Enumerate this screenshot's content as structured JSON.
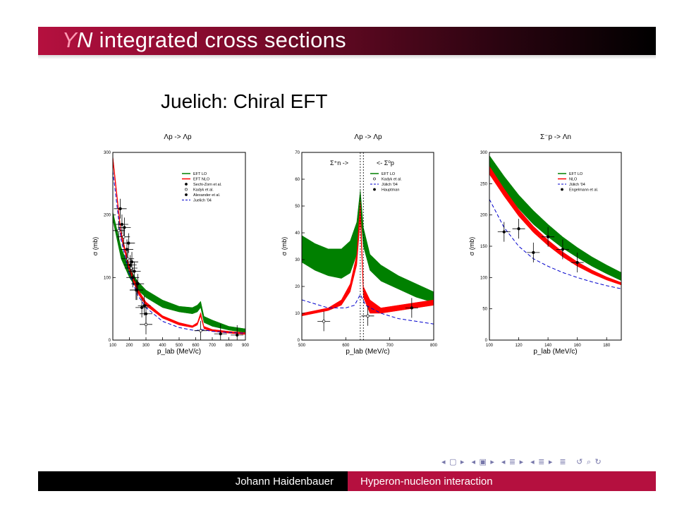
{
  "header": {
    "title_y": "Y",
    "title_n": "N",
    "title_rest": " integrated cross sections",
    "subtitle": "Juelich: Chiral EFT"
  },
  "footer": {
    "author": "Johann Haidenbauer",
    "talk": "Hyperon-nucleon interaction"
  },
  "nav_icons": [
    "nav-left-icon",
    "nav-frame-icon",
    "nav-subsection-icon",
    "nav-section-icon",
    "nav-align-icon",
    "nav-search-icon"
  ],
  "colors": {
    "lo": "#008000",
    "nlo": "#ff0000",
    "juelich": "#0000cc",
    "accent": "#b5103f"
  },
  "chart_data": [
    {
      "type": "line",
      "title": "Λp -> Λp",
      "xlabel": "p_lab (MeV/c)",
      "ylabel": "σ (mb)",
      "xlim": [
        100,
        900
      ],
      "ylim": [
        0,
        300
      ],
      "xticks": [
        100,
        200,
        300,
        400,
        500,
        600,
        700,
        800,
        900
      ],
      "yticks": [
        0,
        100,
        200,
        300
      ],
      "legend_position": "top-right",
      "legend": [
        "EFT LO",
        "EFT NLO",
        "Sechi-Zorn et al.",
        "Kadyk et al.",
        "Alexander et al.",
        "Juelich '04"
      ],
      "series": [
        {
          "name": "EFT LO",
          "style": "band",
          "x": [
            100,
            150,
            200,
            250,
            300,
            400,
            500,
            580,
            610,
            630,
            650,
            700,
            800,
            900
          ],
          "lo": [
            192,
            130,
            100,
            80,
            68,
            52,
            45,
            42,
            45,
            52,
            28,
            22,
            16,
            12
          ],
          "hi": [
            205,
            148,
            115,
            94,
            80,
            64,
            54,
            52,
            56,
            62,
            38,
            32,
            22,
            18
          ]
        },
        {
          "name": "EFT NLO",
          "style": "band",
          "x": [
            100,
            150,
            200,
            250,
            300,
            400,
            500,
            580,
            610,
            630,
            650,
            700,
            800,
            900
          ],
          "lo": [
            285,
            165,
            110,
            75,
            55,
            35,
            24,
            20,
            24,
            38,
            18,
            14,
            11,
            9
          ],
          "hi": [
            295,
            173,
            118,
            82,
            61,
            39,
            28,
            23,
            28,
            44,
            22,
            17,
            14,
            12
          ]
        },
        {
          "name": "Juelich '04",
          "style": "dashed",
          "x": [
            100,
            150,
            200,
            250,
            300,
            400,
            500,
            600,
            633,
            700,
            800,
            900
          ],
          "y": [
            270,
            160,
            105,
            72,
            52,
            30,
            20,
            15,
            17,
            14,
            12,
            11
          ]
        },
        {
          "name": "Sechi-Zorn et al.",
          "style": "points",
          "x": [
            145,
            170,
            195,
            215,
            230,
            250,
            290
          ],
          "y": [
            210,
            180,
            155,
            125,
            110,
            90,
            55
          ]
        },
        {
          "name": "Kadyk et al.",
          "style": "points",
          "x": [
            135,
            165,
            190,
            210,
            240,
            300,
            630
          ],
          "y": [
            175,
            165,
            130,
            115,
            80,
            25,
            15
          ]
        },
        {
          "name": "Alexander et al.",
          "style": "points",
          "x": [
            155,
            185,
            205,
            220,
            245,
            275,
            300,
            750,
            850
          ],
          "y": [
            185,
            145,
            120,
            100,
            80,
            52,
            42,
            10,
            8
          ]
        }
      ]
    },
    {
      "type": "line",
      "title": "Λp -> Λp",
      "annotation_left": "Σ⁺n ->",
      "annotation_right": "<- Σ⁰p",
      "xlabel": "p_lab (MeV/c)",
      "ylabel": "σ (mb)",
      "xlim": [
        500,
        800
      ],
      "ylim": [
        0,
        70
      ],
      "xticks": [
        500,
        600,
        700,
        800
      ],
      "yticks": [
        0,
        10,
        20,
        30,
        40,
        50,
        60,
        70
      ],
      "thresholds": [
        633,
        640
      ],
      "legend_position": "top-right",
      "legend": [
        "EFT LO",
        "Kadyk et al.",
        "Jülich '04",
        "Hauptman"
      ],
      "series": [
        {
          "name": "EFT LO",
          "style": "band",
          "x": [
            500,
            530,
            560,
            590,
            610,
            625,
            633,
            640,
            655,
            680,
            720,
            760,
            800
          ],
          "lo": [
            29,
            26,
            24,
            23,
            25,
            32,
            48,
            35,
            26,
            22,
            19,
            16,
            14
          ],
          "hi": [
            39,
            36,
            34,
            34,
            37,
            44,
            56,
            42,
            32,
            28,
            24,
            21,
            18
          ]
        },
        {
          "name": "EFT NLO",
          "style": "band",
          "x": [
            500,
            530,
            560,
            590,
            610,
            625,
            633,
            640,
            655,
            680,
            720,
            760,
            800
          ],
          "lo": [
            9,
            10,
            11,
            13,
            18,
            28,
            45,
            16,
            10,
            10,
            11,
            12,
            13
          ],
          "hi": [
            10,
            11,
            12,
            15,
            21,
            32,
            52,
            20,
            15,
            12,
            13,
            14,
            15
          ]
        },
        {
          "name": "Jülich '04",
          "style": "dashed",
          "x": [
            500,
            560,
            600,
            620,
            633,
            645,
            680,
            720,
            760,
            800
          ],
          "y": [
            15,
            12,
            12,
            13,
            17,
            13,
            10,
            8,
            7,
            6
          ]
        },
        {
          "name": "Kadyk et al.",
          "style": "points",
          "x": [
            550,
            650
          ],
          "y": [
            7,
            9
          ]
        },
        {
          "name": "Hauptman",
          "style": "points",
          "x": [
            750
          ],
          "y": [
            12
          ]
        }
      ]
    },
    {
      "type": "line",
      "title": "Σ⁻p -> Λn",
      "xlabel": "p_lab (MeV/c)",
      "ylabel": "σ (mb)",
      "xlim": [
        100,
        190
      ],
      "ylim": [
        0,
        300
      ],
      "xticks": [
        100,
        120,
        140,
        160,
        180
      ],
      "yticks": [
        0,
        50,
        100,
        150,
        200,
        250,
        300
      ],
      "legend_position": "top-right",
      "legend": [
        "EFT LO",
        "NLO",
        "Jülich '04",
        "Engelmann et al."
      ],
      "series": [
        {
          "name": "EFT LO",
          "style": "band",
          "x": [
            100,
            110,
            120,
            130,
            140,
            150,
            160,
            170,
            180,
            190
          ],
          "lo": [
            270,
            240,
            210,
            185,
            165,
            147,
            132,
            118,
            106,
            95
          ],
          "hi": [
            295,
            262,
            232,
            207,
            185,
            165,
            148,
            133,
            120,
            108
          ]
        },
        {
          "name": "NLO",
          "style": "band",
          "x": [
            100,
            110,
            120,
            130,
            140,
            150,
            160,
            170,
            180,
            190
          ],
          "lo": [
            265,
            230,
            198,
            172,
            151,
            133,
            118,
            106,
            96,
            88
          ],
          "hi": [
            278,
            242,
            209,
            182,
            160,
            141,
            125,
            112,
            101,
            92
          ]
        },
        {
          "name": "Jülich '04",
          "style": "dashed",
          "x": [
            100,
            110,
            120,
            130,
            140,
            150,
            160,
            170,
            180,
            190
          ],
          "y": [
            225,
            180,
            150,
            130,
            118,
            108,
            100,
            93,
            87,
            82
          ]
        },
        {
          "name": "Engelmann et al.",
          "style": "points",
          "x": [
            110,
            120,
            130,
            140,
            150,
            160
          ],
          "y": [
            173,
            178,
            140,
            165,
            145,
            124
          ]
        }
      ]
    }
  ]
}
